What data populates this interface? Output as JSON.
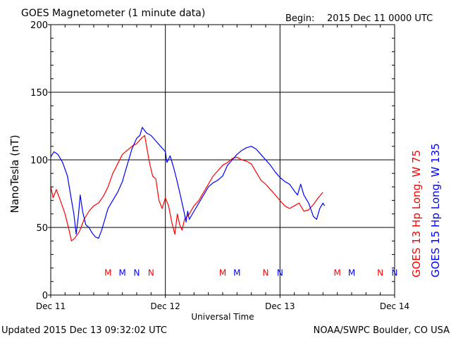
{
  "header": {
    "title": "GOES Magnetometer (1 minute data)",
    "begin_label": "Begin:",
    "begin_value": "2015 Dec 11 0000 UTC"
  },
  "footer": {
    "updated": "Updated 2015 Dec 13 09:32:02 UTC",
    "source": "NOAA/SWPC Boulder, CO USA"
  },
  "colors": {
    "goes13": "#ff0000",
    "goes15": "#0000ff",
    "axis": "#000000"
  },
  "chart_data": {
    "type": "line",
    "ylabel": "NanoTesla (nT)",
    "xlabel": "Universal Time",
    "ylim": [
      0,
      200
    ],
    "xlim": [
      "2015-12-11T00:00",
      "2015-12-14T00:00"
    ],
    "y_ticks": [
      0,
      50,
      100,
      150,
      200
    ],
    "x_ticks": [
      {
        "t": "2015-12-11T00:00",
        "label": "Dec 11"
      },
      {
        "t": "2015-12-12T00:00",
        "label": "Dec 12"
      },
      {
        "t": "2015-12-13T00:00",
        "label": "Dec 13"
      },
      {
        "t": "2015-12-14T00:00",
        "label": "Dec 14"
      }
    ],
    "grid": true,
    "legend": "right-vertical",
    "series": [
      {
        "name": "GOES 13 Hp Long. W 75",
        "color": "#ff0000",
        "points": [
          [
            "2015-12-11T00:00",
            80
          ],
          [
            "2015-12-11T00:30",
            72
          ],
          [
            "2015-12-11T01:10",
            78
          ],
          [
            "2015-12-11T02:00",
            70
          ],
          [
            "2015-12-11T03:00",
            60
          ],
          [
            "2015-12-11T03:50",
            48
          ],
          [
            "2015-12-11T04:20",
            40
          ],
          [
            "2015-12-11T05:00",
            42
          ],
          [
            "2015-12-11T06:00",
            47
          ],
          [
            "2015-12-11T07:00",
            56
          ],
          [
            "2015-12-11T08:00",
            62
          ],
          [
            "2015-12-11T09:00",
            66
          ],
          [
            "2015-12-11T10:00",
            68
          ],
          [
            "2015-12-11T11:00",
            73
          ],
          [
            "2015-12-11T12:00",
            80
          ],
          [
            "2015-12-11T13:00",
            90
          ],
          [
            "2015-12-11T14:00",
            97
          ],
          [
            "2015-12-11T15:00",
            104
          ],
          [
            "2015-12-11T16:00",
            107
          ],
          [
            "2015-12-11T17:00",
            110
          ],
          [
            "2015-12-11T18:00",
            112
          ],
          [
            "2015-12-11T19:00",
            116
          ],
          [
            "2015-12-11T19:40",
            118
          ],
          [
            "2015-12-11T20:10",
            108
          ],
          [
            "2015-12-11T20:40",
            98
          ],
          [
            "2015-12-11T21:20",
            88
          ],
          [
            "2015-12-11T22:00",
            86
          ],
          [
            "2015-12-11T22:40",
            70
          ],
          [
            "2015-12-11T23:20",
            64
          ],
          [
            "2015-12-12T00:00",
            72
          ],
          [
            "2015-12-12T00:40",
            66
          ],
          [
            "2015-12-12T01:20",
            54
          ],
          [
            "2015-12-12T02:00",
            45
          ],
          [
            "2015-12-12T02:30",
            60
          ],
          [
            "2015-12-12T03:00",
            52
          ],
          [
            "2015-12-12T03:30",
            48
          ],
          [
            "2015-12-12T04:00",
            56
          ],
          [
            "2015-12-12T05:00",
            60
          ],
          [
            "2015-12-12T06:00",
            66
          ],
          [
            "2015-12-12T07:00",
            70
          ],
          [
            "2015-12-12T08:00",
            76
          ],
          [
            "2015-12-12T09:00",
            82
          ],
          [
            "2015-12-12T10:00",
            88
          ],
          [
            "2015-12-12T11:00",
            92
          ],
          [
            "2015-12-12T12:00",
            96
          ],
          [
            "2015-12-12T13:00",
            98
          ],
          [
            "2015-12-12T14:00",
            101
          ],
          [
            "2015-12-12T15:00",
            102
          ],
          [
            "2015-12-12T16:00",
            100
          ],
          [
            "2015-12-12T17:00",
            99
          ],
          [
            "2015-12-12T18:00",
            97
          ],
          [
            "2015-12-12T19:00",
            91
          ],
          [
            "2015-12-12T20:00",
            85
          ],
          [
            "2015-12-12T21:00",
            82
          ],
          [
            "2015-12-12T22:00",
            78
          ],
          [
            "2015-12-12T23:00",
            74
          ],
          [
            "2015-12-13T00:00",
            70
          ],
          [
            "2015-12-13T01:00",
            66
          ],
          [
            "2015-12-13T02:00",
            64
          ],
          [
            "2015-12-13T03:00",
            66
          ],
          [
            "2015-12-13T04:00",
            68
          ],
          [
            "2015-12-13T05:00",
            62
          ],
          [
            "2015-12-13T06:00",
            63
          ],
          [
            "2015-12-13T07:00",
            67
          ],
          [
            "2015-12-13T08:00",
            72
          ],
          [
            "2015-12-13T09:00",
            76
          ]
        ]
      },
      {
        "name": "GOES 15 Hp Long. W 135",
        "color": "#0000ff",
        "points": [
          [
            "2015-12-11T00:00",
            102
          ],
          [
            "2015-12-11T00:40",
            106
          ],
          [
            "2015-12-11T01:30",
            104
          ],
          [
            "2015-12-11T02:30",
            98
          ],
          [
            "2015-12-11T03:30",
            88
          ],
          [
            "2015-12-11T04:10",
            74
          ],
          [
            "2015-12-11T04:50",
            60
          ],
          [
            "2015-12-11T05:20",
            45
          ],
          [
            "2015-12-11T05:50",
            60
          ],
          [
            "2015-12-11T06:10",
            74
          ],
          [
            "2015-12-11T06:40",
            62
          ],
          [
            "2015-12-11T07:20",
            52
          ],
          [
            "2015-12-11T08:00",
            50
          ],
          [
            "2015-12-11T08:40",
            46
          ],
          [
            "2015-12-11T09:20",
            43
          ],
          [
            "2015-12-11T10:00",
            42
          ],
          [
            "2015-12-11T10:40",
            48
          ],
          [
            "2015-12-11T11:20",
            56
          ],
          [
            "2015-12-11T12:00",
            64
          ],
          [
            "2015-12-11T13:00",
            70
          ],
          [
            "2015-12-11T14:00",
            76
          ],
          [
            "2015-12-11T15:00",
            84
          ],
          [
            "2015-12-11T16:00",
            96
          ],
          [
            "2015-12-11T17:00",
            108
          ],
          [
            "2015-12-11T18:00",
            116
          ],
          [
            "2015-12-11T18:40",
            118
          ],
          [
            "2015-12-11T19:10",
            124
          ],
          [
            "2015-12-11T20:00",
            120
          ],
          [
            "2015-12-11T21:00",
            118
          ],
          [
            "2015-12-11T22:00",
            114
          ],
          [
            "2015-12-11T23:00",
            110
          ],
          [
            "2015-12-12T00:00",
            106
          ],
          [
            "2015-12-12T00:20",
            98
          ],
          [
            "2015-12-12T01:00",
            103
          ],
          [
            "2015-12-12T01:40",
            95
          ],
          [
            "2015-12-12T02:20",
            86
          ],
          [
            "2015-12-12T03:00",
            76
          ],
          [
            "2015-12-12T03:30",
            68
          ],
          [
            "2015-12-12T04:00",
            60
          ],
          [
            "2015-12-12T04:20",
            54
          ],
          [
            "2015-12-12T04:40",
            62
          ],
          [
            "2015-12-12T05:00",
            56
          ],
          [
            "2015-12-12T06:00",
            62
          ],
          [
            "2015-12-12T07:00",
            68
          ],
          [
            "2015-12-12T08:00",
            74
          ],
          [
            "2015-12-12T09:00",
            80
          ],
          [
            "2015-12-12T10:00",
            83
          ],
          [
            "2015-12-12T11:00",
            85
          ],
          [
            "2015-12-12T12:00",
            88
          ],
          [
            "2015-12-12T13:00",
            96
          ],
          [
            "2015-12-12T14:00",
            100
          ],
          [
            "2015-12-12T15:00",
            104
          ],
          [
            "2015-12-12T16:00",
            107
          ],
          [
            "2015-12-12T17:00",
            109
          ],
          [
            "2015-12-12T18:00",
            110
          ],
          [
            "2015-12-12T19:00",
            108
          ],
          [
            "2015-12-12T20:00",
            104
          ],
          [
            "2015-12-12T21:00",
            100
          ],
          [
            "2015-12-12T22:00",
            96
          ],
          [
            "2015-12-12T23:00",
            91
          ],
          [
            "2015-12-13T00:00",
            87
          ],
          [
            "2015-12-13T01:00",
            84
          ],
          [
            "2015-12-13T02:00",
            82
          ],
          [
            "2015-12-13T03:00",
            77
          ],
          [
            "2015-12-13T03:40",
            74
          ],
          [
            "2015-12-13T04:20",
            82
          ],
          [
            "2015-12-13T05:00",
            74
          ],
          [
            "2015-12-13T06:00",
            68
          ],
          [
            "2015-12-13T07:00",
            58
          ],
          [
            "2015-12-13T07:40",
            56
          ],
          [
            "2015-12-13T08:20",
            64
          ],
          [
            "2015-12-13T09:00",
            68
          ],
          [
            "2015-12-13T09:20",
            66
          ]
        ]
      }
    ],
    "markers": [
      {
        "t": "2015-12-11T12:00",
        "label": "M",
        "color": "#ff0000"
      },
      {
        "t": "2015-12-11T18:00",
        "label": "N",
        "color": "#0000ff"
      },
      {
        "t": "2015-12-11T15:00",
        "label": "M",
        "color": "#0000ff"
      },
      {
        "t": "2015-12-11T21:00",
        "label": "N",
        "color": "#ff0000"
      },
      {
        "t": "2015-12-12T12:00",
        "label": "M",
        "color": "#ff0000"
      },
      {
        "t": "2015-12-12T15:00",
        "label": "M",
        "color": "#0000ff"
      },
      {
        "t": "2015-12-12T21:00",
        "label": "N",
        "color": "#ff0000"
      },
      {
        "t": "2015-12-13T00:00",
        "label": "N",
        "color": "#0000ff"
      },
      {
        "t": "2015-12-13T12:00",
        "label": "M",
        "color": "#ff0000"
      },
      {
        "t": "2015-12-13T15:00",
        "label": "M",
        "color": "#0000ff"
      },
      {
        "t": "2015-12-13T21:00",
        "label": "N",
        "color": "#ff0000"
      },
      {
        "t": "2015-12-14T00:00",
        "label": "N",
        "color": "#0000ff"
      }
    ],
    "marker_value": 17
  }
}
